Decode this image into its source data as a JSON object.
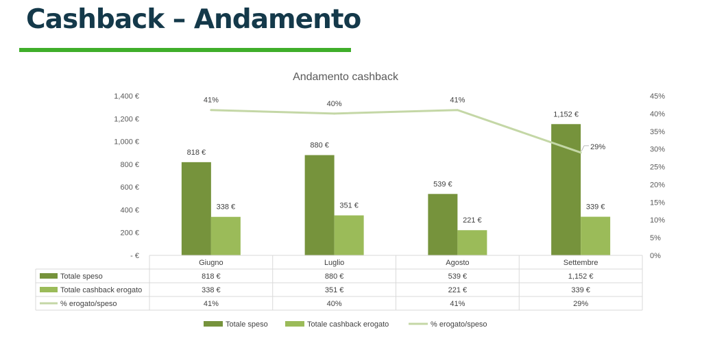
{
  "page": {
    "title": "Cashback – Andamento"
  },
  "colors": {
    "title": "#14394a",
    "accent": "#3fae2a"
  },
  "chart_data": {
    "type": "bar",
    "title": "Andamento cashback",
    "categories": [
      "Giugno",
      "Luglio",
      "Agosto",
      "Settembre"
    ],
    "series": [
      {
        "name": "Totale speso",
        "type": "bar",
        "axis": "left",
        "color": "#76933c",
        "values": [
          818,
          880,
          539,
          1152
        ],
        "labels": [
          "818 €",
          "880 €",
          "539 €",
          "1,152 €"
        ]
      },
      {
        "name": "Totale cashback erogato",
        "type": "bar",
        "axis": "left",
        "color": "#9bbb59",
        "values": [
          338,
          351,
          221,
          339
        ],
        "labels": [
          "338 €",
          "351 €",
          "221 €",
          "339 €"
        ]
      },
      {
        "name": "% erogato/speso",
        "type": "line",
        "axis": "right",
        "color": "#c4d7a6",
        "values": [
          41,
          40,
          41,
          29
        ],
        "labels": [
          "41%",
          "40%",
          "41%",
          "29%"
        ]
      }
    ],
    "y_left": {
      "min": 0,
      "max": 1400,
      "step": 200,
      "tick_labels": [
        "-  €",
        "200 €",
        "400 €",
        "600 €",
        "800 €",
        "1,000 €",
        "1,200 €",
        "1,400 €"
      ]
    },
    "y_right": {
      "min": 0,
      "max": 45,
      "step": 5,
      "tick_labels": [
        "0%",
        "5%",
        "10%",
        "15%",
        "20%",
        "25%",
        "30%",
        "35%",
        "40%",
        "45%"
      ]
    },
    "grid": false,
    "legend": "bottom",
    "data_table": true
  }
}
